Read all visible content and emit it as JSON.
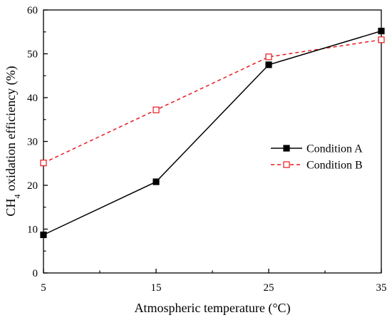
{
  "chart_data": {
    "type": "line",
    "xlabel": "Atmospheric temperature (°C)",
    "ylabel": {
      "prefix": "CH",
      "subscript": "4",
      "suffix": " oxidation efficiency (%)"
    },
    "x": [
      5,
      15,
      25,
      35
    ],
    "xticks": [
      5,
      15,
      25,
      35
    ],
    "xlim": [
      5,
      35
    ],
    "ylim": [
      0,
      60
    ],
    "yticks": [
      0,
      10,
      20,
      30,
      40,
      50,
      60
    ],
    "grid": false,
    "legend_position": "center-right",
    "series": [
      {
        "name": "Condition A",
        "values": [
          8.7,
          20.8,
          47.5,
          55.2
        ],
        "color": "#000000",
        "line_style": "solid",
        "marker": "filled-square"
      },
      {
        "name": "Condition B",
        "values": [
          25.1,
          37.2,
          49.3,
          53.2
        ],
        "color": "#e8191d",
        "line_style": "dashed",
        "marker": "open-square"
      }
    ]
  }
}
